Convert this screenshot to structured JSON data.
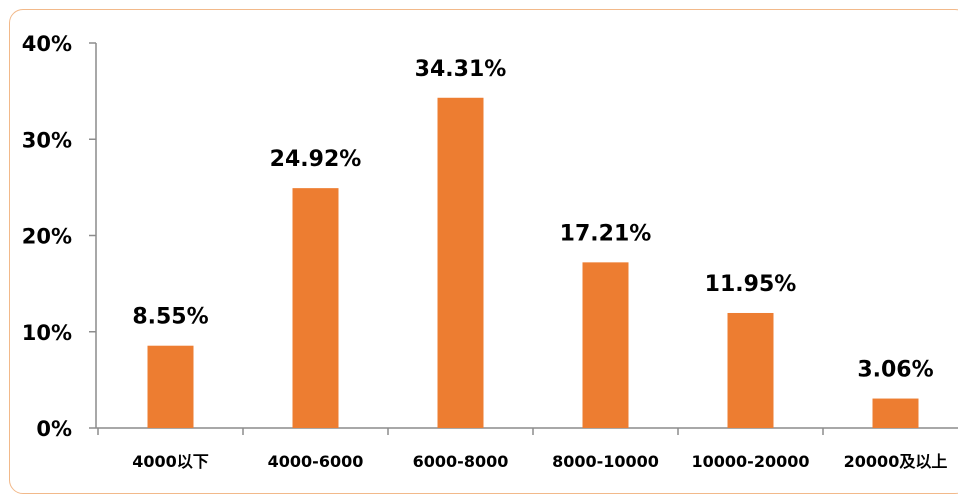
{
  "chart_data": {
    "type": "bar",
    "categories": [
      "4000以下",
      "4000-6000",
      "6000-8000",
      "8000-10000",
      "10000-20000",
      "20000及以上"
    ],
    "values": [
      8.55,
      24.92,
      34.31,
      17.21,
      11.95,
      3.06
    ],
    "data_labels": [
      "8.55%",
      "24.92%",
      "34.31%",
      "17.21%",
      "11.95%",
      "3.06%"
    ],
    "y_ticks": [
      "0%",
      "10%",
      "20%",
      "30%",
      "40%"
    ],
    "ylim": [
      0,
      40
    ],
    "title": "",
    "xlabel": "",
    "ylabel": "",
    "grid": false,
    "bar_color": "#ed7d31",
    "frame_color": "#f2b98a"
  }
}
